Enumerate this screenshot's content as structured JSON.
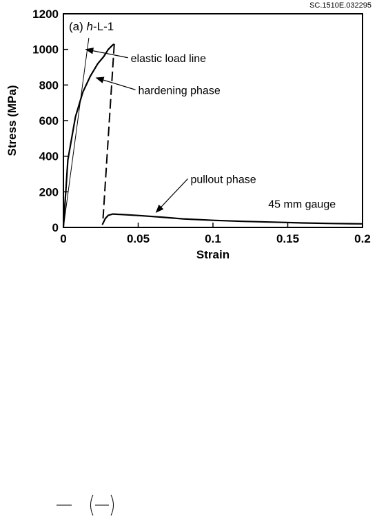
{
  "code_label": "SC.1510E.032295",
  "chart_data": {
    "type": "line",
    "panel_label_prefix": "(a) ",
    "panel_label_italic": "h",
    "panel_label_suffix": "-L-1",
    "xlabel": "Strain",
    "ylabel": "Stress (MPa)",
    "xlim": [
      0,
      0.2
    ],
    "ylim": [
      0,
      1200
    ],
    "xticks": [
      0,
      0.05,
      0.1,
      0.15,
      0.2
    ],
    "xtick_labels": [
      "0",
      "0.05",
      "0.1",
      "0.15",
      "0.2"
    ],
    "yticks": [
      0,
      200,
      400,
      600,
      800,
      1000,
      1200
    ],
    "ytick_labels": [
      "0",
      "200",
      "400",
      "600",
      "800",
      "1000",
      "1200"
    ],
    "grid": false,
    "series": [
      {
        "style": "solid",
        "x": [
          0,
          0.003,
          0.008,
          0.013,
          0.018,
          0.023,
          0.027,
          0.03,
          0.033,
          0.034
        ],
        "y": [
          0,
          380,
          620,
          760,
          850,
          920,
          960,
          1000,
          1025,
          1030
        ]
      },
      {
        "style": "dashed",
        "x": [
          0.034,
          0.0265
        ],
        "y": [
          1030,
          50
        ]
      },
      {
        "style": "solid",
        "x": [
          0.026,
          0.028,
          0.03,
          0.033,
          0.04,
          0.05,
          0.065,
          0.08,
          0.1,
          0.12,
          0.14,
          0.16,
          0.18,
          0.2
        ],
        "y": [
          15,
          50,
          68,
          75,
          72,
          67,
          58,
          48,
          40,
          34,
          30,
          25,
          22,
          20
        ]
      },
      {
        "style": "thin",
        "x": [
          0,
          0.017
        ],
        "y": [
          0,
          1065
        ]
      }
    ],
    "annotations": [
      {
        "text": "elastic load line",
        "tx": 0.045,
        "ty": 930,
        "ax": 0.015,
        "ay": 1000
      },
      {
        "text": "hardening phase",
        "tx": 0.05,
        "ty": 750,
        "ax": 0.022,
        "ay": 840
      },
      {
        "text": "pullout phase",
        "tx": 0.085,
        "ty": 250,
        "ax": 0.062,
        "ay": 85
      },
      {
        "text": "45 mm gauge",
        "tx": 0.137,
        "ty": 110,
        "ax": null,
        "ay": null
      }
    ]
  }
}
